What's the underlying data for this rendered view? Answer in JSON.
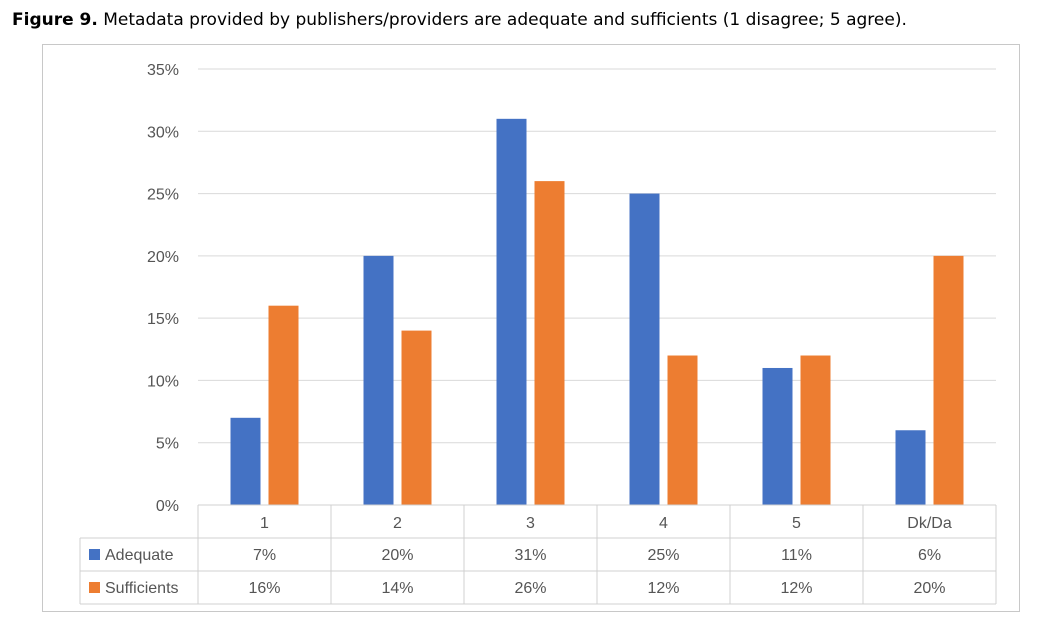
{
  "caption": {
    "label": "Figure 9.",
    "text": " Metadata provided by publishers/providers are adequate and sufficients (1 disagree; 5 agree)."
  },
  "chart_data": {
    "type": "bar",
    "categories": [
      "1",
      "2",
      "3",
      "4",
      "5",
      "Dk/Da"
    ],
    "series": [
      {
        "name": "Adequate",
        "color": "#4472c4",
        "values": [
          7,
          20,
          31,
          25,
          11,
          6
        ],
        "labels": [
          "7%",
          "20%",
          "31%",
          "25%",
          "11%",
          "6%"
        ]
      },
      {
        "name": "Sufficients",
        "color": "#ed7d31",
        "values": [
          16,
          14,
          26,
          12,
          12,
          20
        ],
        "labels": [
          "16%",
          "14%",
          "26%",
          "12%",
          "12%",
          "20%"
        ]
      }
    ],
    "ylim": [
      0,
      35
    ],
    "yticks": [
      "0%",
      "5%",
      "10%",
      "15%",
      "20%",
      "25%",
      "30%",
      "35%"
    ],
    "grid": true,
    "legend": "data-table"
  }
}
